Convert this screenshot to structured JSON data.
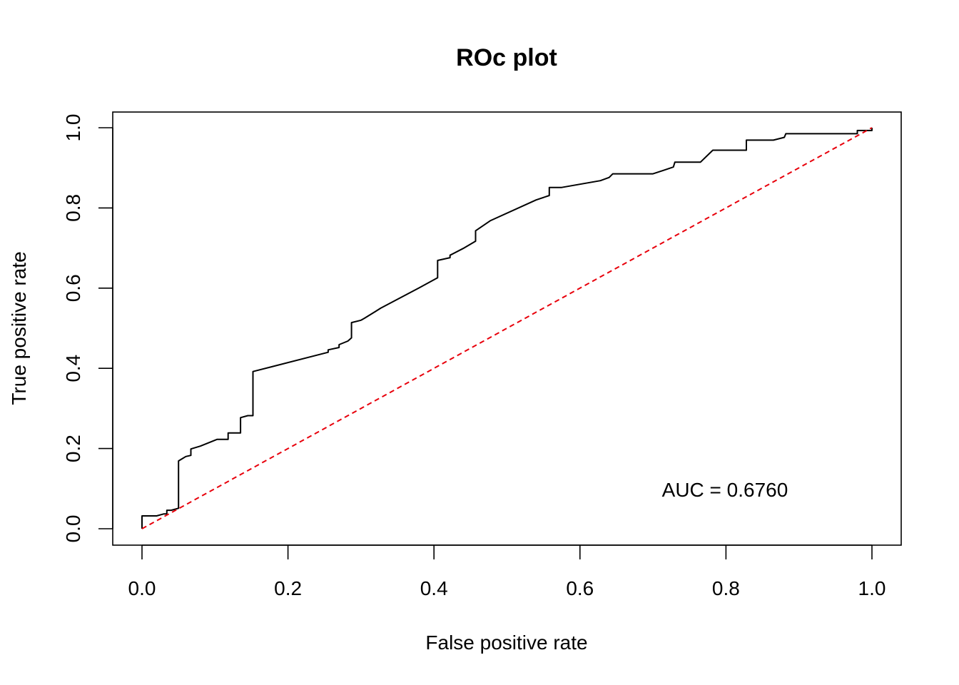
{
  "chart_data": {
    "type": "line",
    "title": "ROc plot",
    "xlabel": "False positive rate",
    "ylabel": "True positive rate",
    "xlim": [
      0,
      1
    ],
    "ylim": [
      0,
      1
    ],
    "x_ticks": [
      "0.0",
      "0.2",
      "0.4",
      "0.6",
      "0.8",
      "1.0"
    ],
    "y_ticks": [
      "0.0",
      "0.2",
      "0.4",
      "0.6",
      "0.8",
      "1.0"
    ],
    "grid": false,
    "legend": "none",
    "annotation": "AUC = 0.6760",
    "series": [
      {
        "color": "#000000",
        "style": "solid",
        "points": [
          [
            0.0,
            0.0
          ],
          [
            0.0,
            0.032
          ],
          [
            0.02,
            0.032
          ],
          [
            0.03,
            0.037
          ],
          [
            0.034,
            0.037
          ],
          [
            0.034,
            0.046
          ],
          [
            0.04,
            0.046
          ],
          [
            0.05,
            0.051
          ],
          [
            0.05,
            0.169
          ],
          [
            0.06,
            0.18
          ],
          [
            0.067,
            0.183
          ],
          [
            0.067,
            0.199
          ],
          [
            0.08,
            0.206
          ],
          [
            0.103,
            0.223
          ],
          [
            0.118,
            0.223
          ],
          [
            0.118,
            0.239
          ],
          [
            0.135,
            0.239
          ],
          [
            0.135,
            0.277
          ],
          [
            0.145,
            0.282
          ],
          [
            0.152,
            0.282
          ],
          [
            0.152,
            0.392
          ],
          [
            0.255,
            0.44
          ],
          [
            0.255,
            0.446
          ],
          [
            0.27,
            0.452
          ],
          [
            0.27,
            0.459
          ],
          [
            0.282,
            0.468
          ],
          [
            0.287,
            0.476
          ],
          [
            0.287,
            0.514
          ],
          [
            0.3,
            0.52
          ],
          [
            0.305,
            0.525
          ],
          [
            0.32,
            0.542
          ],
          [
            0.327,
            0.55
          ],
          [
            0.38,
            0.601
          ],
          [
            0.405,
            0.626
          ],
          [
            0.405,
            0.669
          ],
          [
            0.422,
            0.676
          ],
          [
            0.422,
            0.682
          ],
          [
            0.44,
            0.699
          ],
          [
            0.457,
            0.717
          ],
          [
            0.457,
            0.743
          ],
          [
            0.477,
            0.768
          ],
          [
            0.54,
            0.82
          ],
          [
            0.558,
            0.831
          ],
          [
            0.558,
            0.851
          ],
          [
            0.575,
            0.851
          ],
          [
            0.628,
            0.868
          ],
          [
            0.64,
            0.876
          ],
          [
            0.645,
            0.885
          ],
          [
            0.7,
            0.885
          ],
          [
            0.715,
            0.894
          ],
          [
            0.728,
            0.902
          ],
          [
            0.73,
            0.914
          ],
          [
            0.765,
            0.914
          ],
          [
            0.782,
            0.944
          ],
          [
            0.828,
            0.944
          ],
          [
            0.828,
            0.969
          ],
          [
            0.865,
            0.969
          ],
          [
            0.88,
            0.976
          ],
          [
            0.882,
            0.985
          ],
          [
            0.9,
            0.985
          ],
          [
            0.98,
            0.985
          ],
          [
            0.98,
            0.993
          ],
          [
            1.0,
            0.993
          ],
          [
            1.0,
            1.0
          ]
        ]
      },
      {
        "color": "#e8000b",
        "style": "dashed",
        "points": [
          [
            0.0,
            0.0
          ],
          [
            1.0,
            1.0
          ]
        ]
      }
    ]
  }
}
